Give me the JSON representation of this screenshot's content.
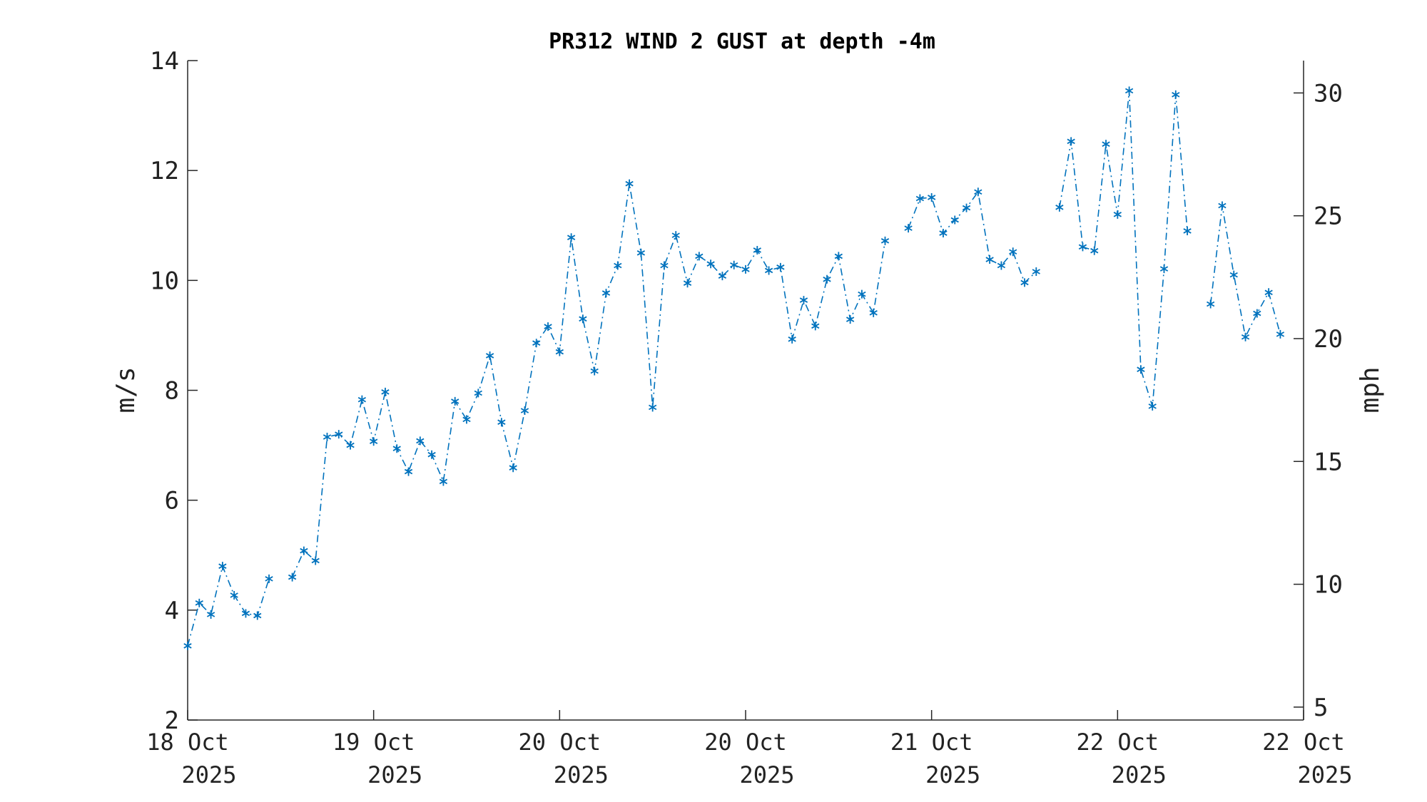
{
  "chart_data": {
    "type": "line",
    "title": "PR312 WIND 2 GUST at depth -4m",
    "ylabel": "m/s",
    "ylabel_right": "mph",
    "ylim": [
      2,
      14
    ],
    "yticks": [
      2,
      4,
      6,
      8,
      10,
      12,
      14
    ],
    "y2ticks": [
      5,
      10,
      15,
      20,
      25,
      30
    ],
    "y2_conversion": 2.23694,
    "xlim": [
      0,
      96
    ],
    "xticks": [
      {
        "x": 0,
        "line1": "18 Oct",
        "line2": "2025"
      },
      {
        "x": 16,
        "line1": "19 Oct",
        "line2": "2025"
      },
      {
        "x": 32,
        "line1": "20 Oct",
        "line2": "2025"
      },
      {
        "x": 48,
        "line1": "20 Oct",
        "line2": "2025"
      },
      {
        "x": 64,
        "line1": "21 Oct",
        "line2": "2025"
      },
      {
        "x": 80,
        "line1": "22 Oct",
        "line2": "2025"
      },
      {
        "x": 96,
        "line1": "22 Oct",
        "line2": "2025"
      }
    ],
    "grid": false,
    "colors": {
      "series": "#0072BD"
    },
    "series": [
      {
        "marker": "asterisk",
        "linestyle": "dash-dot",
        "values": [
          3.35,
          4.13,
          3.92,
          4.8,
          4.27,
          3.94,
          3.9,
          4.57,
          null,
          4.6,
          5.08,
          4.9,
          7.15,
          7.2,
          7.0,
          7.83,
          7.07,
          7.97,
          6.94,
          6.52,
          7.08,
          6.83,
          6.34,
          7.8,
          7.47,
          7.95,
          8.63,
          7.42,
          6.59,
          7.63,
          8.86,
          9.16,
          8.7,
          10.78,
          9.3,
          8.35,
          9.77,
          10.27,
          11.76,
          10.5,
          7.69,
          10.27,
          10.82,
          9.95,
          10.44,
          10.3,
          10.08,
          10.28,
          10.2,
          10.55,
          10.18,
          10.24,
          8.93,
          9.64,
          9.17,
          10.02,
          10.44,
          9.29,
          9.75,
          9.41,
          10.72,
          null,
          10.95,
          11.49,
          11.51,
          10.86,
          11.1,
          11.32,
          11.61,
          10.38,
          10.27,
          10.52,
          9.96,
          10.16,
          null,
          11.33,
          12.53,
          10.61,
          10.54,
          12.48,
          11.2,
          13.45,
          8.38,
          7.71,
          10.21,
          13.38,
          10.9,
          null,
          9.57,
          11.36,
          10.1,
          8.97,
          9.4,
          9.78,
          9.02
        ]
      }
    ]
  }
}
